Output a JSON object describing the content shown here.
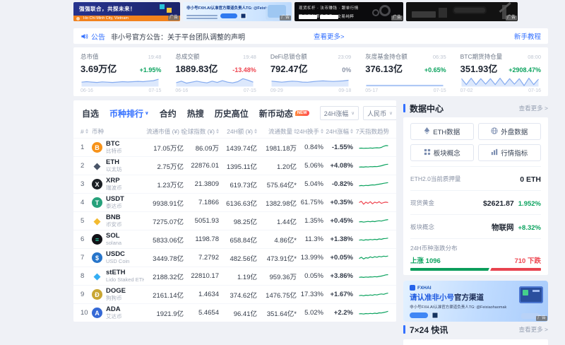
{
  "colors": {
    "blue": "#3370ff",
    "green": "#0ca35f",
    "red": "#ee4550",
    "grey": "#9aa3b5",
    "stat_fill": "#dce8fc",
    "stat_stroke": "#85abef"
  },
  "banners": {
    "partner": {
      "headline": "强强联合，共探未来！",
      "footer": "Ho Chi Minh City, Vietnam",
      "ad_tag": "广告"
    },
    "official": {
      "headline": "非小号FXH.AI认准官方渠道负责人TG: @Feixiaohaomak",
      "ad_tag": "广告"
    },
    "exchange": {
      "line1": "现货杠杆 · 法币赚钱 · 跟单行情",
      "line2": "期权套利零手续费 · 交易纯粹",
      "ad_tag": "广告"
    },
    "mining": {
      "ad_tag": "广告"
    }
  },
  "announcement": {
    "icon_label": "公告",
    "text": "非小号官方公告：关于平台团队调整的声明",
    "more": "查看更多>",
    "tutorial": "新手教程"
  },
  "stats": [
    {
      "label": "总市值",
      "time": "19:48",
      "value": "3.69万亿",
      "change": "+1.95%",
      "dir": "up",
      "date_start": "06-16",
      "date_end": "07-15",
      "spark": [
        4.5,
        5,
        4.6,
        4.2,
        4.8,
        4.5,
        4.2,
        4.6,
        5,
        4.7,
        5,
        5.3,
        5,
        5.6,
        6,
        7.4
      ]
    },
    {
      "label": "总成交额",
      "time": "19:48",
      "value": "1889.83亿",
      "change": "-13.48%",
      "dir": "down",
      "date_start": "06-16",
      "date_end": "07-15",
      "spark": [
        4,
        5.5,
        3.5,
        4.5,
        5.5,
        4.5,
        3.8,
        5.5,
        4.2,
        6,
        4.5,
        3.8,
        5,
        8,
        6.5,
        4.5
      ]
    },
    {
      "label": "DeFi总锁仓额",
      "time": "23:09",
      "value": "792.47亿",
      "change": "0%",
      "dir": "flat",
      "date_start": "09-29",
      "date_end": "09-18",
      "spark": [
        5.5,
        5,
        4.5,
        5,
        5.5,
        5.2,
        4.6,
        4.4,
        5,
        5.5,
        5.8,
        5.5,
        5.2,
        5.5,
        5.8,
        6.4
      ]
    },
    {
      "label": "灰度基金持仓额",
      "time": "06:35",
      "value": "376.13亿",
      "change": "+0.65%",
      "dir": "up",
      "date_start": "05-17",
      "date_end": "07-15",
      "spark": [
        1.2,
        1.2,
        1.2,
        1.2,
        1.2,
        1.2,
        1.2,
        1.2,
        1.2,
        1.2,
        1.2,
        1.2,
        1.2,
        1.2,
        1.2,
        1.2
      ]
    },
    {
      "label": "BTC期货持仓量",
      "time": "08:00",
      "value": "351.93亿",
      "change": "+2908.47%",
      "dir": "up",
      "date_start": "07-02",
      "date_end": "07-16",
      "spark": [
        8,
        2,
        8.5,
        2,
        8,
        2.5,
        8,
        2,
        8.5,
        2,
        8,
        2.5,
        8,
        1,
        8.5,
        2,
        7.5
      ]
    }
  ],
  "tabs": [
    {
      "label": "自选"
    },
    {
      "label": "币种排行",
      "active": true
    },
    {
      "label": "合约"
    },
    {
      "label": "热搜"
    },
    {
      "label": "历史高位"
    },
    {
      "label": "新币动态",
      "badge": "NEW"
    }
  ],
  "controls": {
    "sort_select": "24H涨幅",
    "currency_select": "人民币"
  },
  "table": {
    "headers": [
      {
        "label": "#",
        "sort": true,
        "align": "left"
      },
      {
        "label": "币种",
        "align": "left"
      },
      {
        "label": "流通市值 (¥)",
        "sort": true
      },
      {
        "label": "全球指数 (¥)",
        "sort": true
      },
      {
        "label": "24H额 (¥)",
        "sort": true
      },
      {
        "label": "流通数量",
        "sort": true
      },
      {
        "label": "24H换手",
        "sort": true
      },
      {
        "label": "24H涨幅",
        "sort": true
      },
      {
        "label": "7天指数趋势"
      }
    ],
    "rows": [
      {
        "rank": "1",
        "symbol": "BTC",
        "name": "比特币",
        "icon": {
          "shape": "circle",
          "bg": "#f7931a",
          "fg": "#ffffff",
          "glyph": "B"
        },
        "cap": "17.05万亿",
        "index": "86.09万",
        "vol": "1439.74亿",
        "supply": "1981.18万",
        "turnover": "0.84%",
        "change": "-1.55%",
        "dir": "down",
        "spark_color": "up",
        "spark": [
          4,
          4.2,
          3.9,
          4.1,
          4,
          4.3,
          4.1,
          4.4,
          4.6,
          4.4,
          5,
          6.3,
          7.2,
          7
        ]
      },
      {
        "rank": "2",
        "symbol": "ETH",
        "name": "以太坊",
        "icon": {
          "shape": "glyph",
          "bg": "",
          "fg": "#4a5568",
          "glyph": "◆"
        },
        "cap": "2.75万亿",
        "index": "22876.01",
        "vol": "1395.11亿",
        "supply": "1.20亿",
        "turnover": "5.06%",
        "change": "+4.08%",
        "dir": "up",
        "spark_color": "up",
        "spark": [
          3.5,
          3.7,
          3.4,
          3.8,
          3.6,
          4,
          3.8,
          4.2,
          4,
          4.5,
          5,
          5.8,
          6.5,
          6.8
        ]
      },
      {
        "rank": "3",
        "symbol": "XRP",
        "name": "瑞波币",
        "icon": {
          "shape": "circle",
          "bg": "#1b1f24",
          "fg": "#ffffff",
          "glyph": "X"
        },
        "cap": "1.23万亿",
        "index": "21.3809",
        "vol": "619.73亿",
        "supply": "575.64亿*",
        "turnover": "5.04%",
        "change": "-0.82%",
        "dir": "down",
        "spark_color": "up",
        "spark": [
          3,
          3.4,
          3.1,
          3.6,
          3.3,
          3.8,
          4.2,
          4,
          4.6,
          5,
          5.4,
          6,
          6.4,
          6.8
        ]
      },
      {
        "rank": "4",
        "symbol": "USDT",
        "name": "泰达币",
        "icon": {
          "shape": "circle",
          "bg": "#26a17b",
          "fg": "#ffffff",
          "glyph": "T"
        },
        "cap": "9938.91亿",
        "index": "7.1866",
        "vol": "6136.63亿",
        "supply": "1382.98亿",
        "turnover": "61.75%",
        "change": "+0.35%",
        "dir": "up",
        "spark_color": "down",
        "spark": [
          5,
          6.5,
          3,
          5.5,
          4,
          6,
          3.5,
          5.5,
          4.5,
          6,
          4,
          5,
          5.5,
          5
        ]
      },
      {
        "rank": "5",
        "symbol": "BNB",
        "name": "币安币",
        "icon": {
          "shape": "glyph",
          "bg": "",
          "fg": "#f3ba2f",
          "glyph": "◆"
        },
        "cap": "7275.07亿",
        "index": "5051.93",
        "vol": "98.25亿",
        "supply": "1.44亿",
        "turnover": "1.35%",
        "change": "+0.45%",
        "dir": "up",
        "spark_color": "up",
        "spark": [
          3.8,
          4.2,
          3.6,
          4,
          4.4,
          4,
          4.6,
          4.2,
          4.8,
          5.2,
          4.8,
          5.6,
          6.2,
          6.6
        ]
      },
      {
        "rank": "6",
        "symbol": "SOL",
        "name": "solana",
        "icon": {
          "shape": "circle",
          "bg": "#121217",
          "fg": "#2de2b4",
          "glyph": "≡"
        },
        "cap": "5833.06亿",
        "index": "1198.78",
        "vol": "658.84亿",
        "supply": "4.86亿*",
        "turnover": "11.3%",
        "change": "+1.38%",
        "dir": "up",
        "spark_color": "up",
        "spark": [
          4,
          4.4,
          3.8,
          4.6,
          4.2,
          4.8,
          4.4,
          5,
          4.6,
          5.4,
          5,
          5.8,
          6,
          6.4
        ]
      },
      {
        "rank": "7",
        "symbol": "USDC",
        "name": "USD Coin",
        "icon": {
          "shape": "circle",
          "bg": "#2775ca",
          "fg": "#ffffff",
          "glyph": "$"
        },
        "cap": "3449.78亿",
        "index": "7.2792",
        "vol": "482.56亿",
        "supply": "473.91亿*",
        "turnover": "13.99%",
        "change": "+0.05%",
        "dir": "up",
        "spark_color": "up",
        "spark": [
          4,
          5.5,
          3.5,
          5,
          4.5,
          6,
          5,
          6.2,
          5.5,
          6.5,
          6,
          6.8,
          6.4,
          7
        ]
      },
      {
        "rank": "8",
        "symbol": "stETH",
        "name": "Lido Staked ETH",
        "icon": {
          "shape": "glyph",
          "bg": "",
          "fg": "#35aef3",
          "glyph": "◆"
        },
        "cap": "2188.32亿",
        "index": "22810.17",
        "vol": "1.19亿",
        "supply": "959.36万",
        "turnover": "0.05%",
        "change": "+3.86%",
        "dir": "up",
        "spark_color": "up",
        "spark": [
          3.5,
          3.8,
          3.4,
          3.9,
          3.7,
          4.1,
          3.9,
          4.3,
          4.1,
          4.6,
          5,
          5.7,
          6.4,
          6.7
        ]
      },
      {
        "rank": "9",
        "symbol": "DOGE",
        "name": "狗狗币",
        "icon": {
          "shape": "circle",
          "bg": "#c9a633",
          "fg": "#ffffff",
          "glyph": "Ð"
        },
        "cap": "2161.14亿",
        "index": "1.4634",
        "vol": "374.62亿",
        "supply": "1476.75亿",
        "turnover": "17.33%",
        "change": "+1.67%",
        "dir": "up",
        "spark_color": "up",
        "spark": [
          3.6,
          4,
          3.4,
          4.2,
          3.8,
          4.4,
          4,
          4.8,
          4.4,
          5.2,
          5.6,
          5.2,
          6,
          6.6
        ]
      },
      {
        "rank": "10",
        "symbol": "ADA",
        "name": "艾达币",
        "icon": {
          "shape": "circle",
          "bg": "#3569d6",
          "fg": "#ffffff",
          "glyph": "A"
        },
        "cap": "1921.9亿",
        "index": "5.4654",
        "vol": "96.41亿",
        "supply": "351.64亿*",
        "turnover": "5.02%",
        "change": "+2.2%",
        "dir": "up",
        "spark_color": "up",
        "spark": [
          3.8,
          4,
          3.6,
          4.2,
          3.9,
          4.3,
          4,
          4.6,
          4.2,
          5,
          4.8,
          5.4,
          6,
          6.8
        ]
      }
    ]
  },
  "sidebar": {
    "data_center": {
      "title": "数据中心",
      "more": "查看更多 >"
    },
    "buttons": [
      {
        "label": "ETH数据",
        "icon": "eth"
      },
      {
        "label": "外盘数据",
        "icon": "globe"
      },
      {
        "label": "板块概念",
        "icon": "grid"
      },
      {
        "label": "行情指标",
        "icon": "bars"
      }
    ],
    "metrics": [
      {
        "label": "ETH2.0当前质押量",
        "value": "0 ETH",
        "extra": ""
      },
      {
        "label": "现货黄金",
        "value": "$2621.87",
        "extra": "1.952%"
      },
      {
        "label": "板块概念",
        "value": "物联网",
        "extra": "+8.32%"
      }
    ],
    "distribution": {
      "label": "24H币种涨跌分布",
      "up_label": "上涨",
      "up_count": "1096",
      "down_count": "710",
      "down_label": "下跌",
      "up_pct": 60.7
    },
    "ad": {
      "brand": "FXHAI",
      "title_hl": "请认准非小号",
      "title_dk": "官方渠道",
      "line": "非小号FXH.AI认准官方渠道负责人TG: @Feixiaohaomak",
      "ad_tag": "广告"
    },
    "news": {
      "title": "7×24 快讯",
      "more": "查看更多 >"
    }
  }
}
